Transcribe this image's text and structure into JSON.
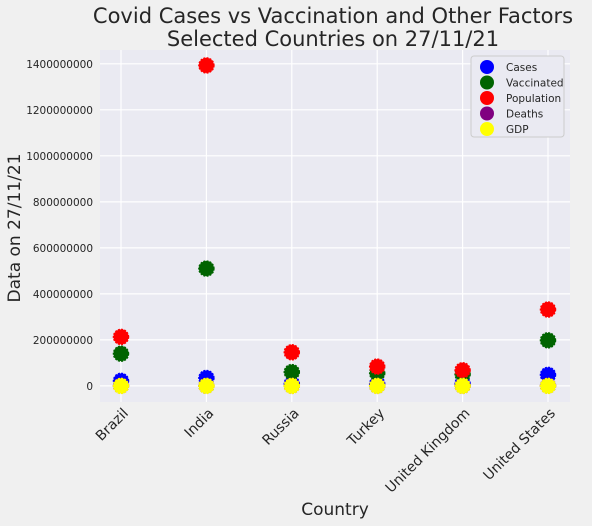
{
  "chart_data": {
    "type": "scatter",
    "title": [
      "Covid Cases vs Vaccination and Other Factors",
      "Selected Countries on 27/11/21"
    ],
    "xlabel": "Country",
    "ylabel": "Data on 27/11/21",
    "categories": [
      "Brazil",
      "India",
      "Russia",
      "Turkey",
      "United Kingdom",
      "United States"
    ],
    "ylim": [
      -70000000,
      1460000000
    ],
    "yticks": [
      0,
      200000000,
      400000000,
      600000000,
      800000000,
      1000000000,
      1200000000,
      1400000000
    ],
    "ytick_labels": [
      "0",
      "200000000",
      "400000000",
      "600000000",
      "800000000",
      "1000000000",
      "1200000000",
      "1400000000"
    ],
    "grid": true,
    "legend_position": "top-right",
    "series": [
      {
        "name": "Cases",
        "color": "#0000ff",
        "values": [
          22000000,
          34500000,
          9500000,
          8800000,
          10000000,
          48000000
        ]
      },
      {
        "name": "Vaccinated",
        "color": "#006400",
        "values": [
          140000000,
          510000000,
          60000000,
          55000000,
          50000000,
          198000000
        ]
      },
      {
        "name": "Population",
        "color": "#ff0000",
        "values": [
          213000000,
          1393000000,
          146000000,
          84000000,
          68000000,
          332000000
        ]
      },
      {
        "name": "Deaths",
        "color": "#800080",
        "values": [
          614000,
          467000,
          266000,
          76000,
          144000,
          776000
        ]
      },
      {
        "name": "GDP",
        "color": "#ffff00",
        "values": [
          1445,
          2622,
          1483,
          720,
          2708,
          20953
        ]
      }
    ]
  }
}
